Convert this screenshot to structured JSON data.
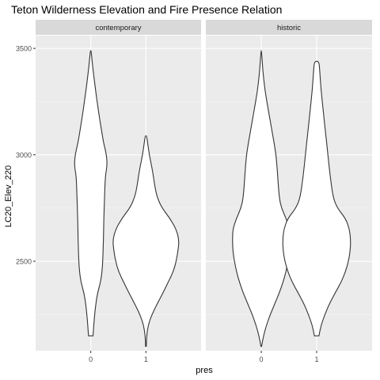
{
  "chart_data": {
    "type": "violin",
    "title": "Teton Wilderness Elevation and Fire Presence Relation",
    "xlabel": "pres",
    "ylabel": "LC20_Elev_220",
    "categories": [
      "0",
      "1"
    ],
    "yticks": [
      2500,
      3000,
      3500
    ],
    "ylim": [
      2080,
      3560
    ],
    "grid": true,
    "panel_background": "#ebebeb",
    "strip_background": "#d9d9d9",
    "violin_fill": "#ffffff",
    "violin_stroke": "#333333",
    "facets": [
      {
        "label": "contemporary",
        "violins": [
          {
            "category": "0",
            "profile": [
              [
                2150,
                0.034
              ],
              [
                2200,
                0.045
              ],
              [
                2250,
                0.059
              ],
              [
                2300,
                0.076
              ],
              [
                2350,
                0.101
              ],
              [
                2400,
                0.146
              ],
              [
                2450,
                0.169
              ],
              [
                2500,
                0.18
              ],
              [
                2600,
                0.191
              ],
              [
                2700,
                0.196
              ],
              [
                2800,
                0.207
              ],
              [
                2900,
                0.218
              ],
              [
                2950,
                0.247
              ],
              [
                3000,
                0.236
              ],
              [
                3050,
                0.197
              ],
              [
                3100,
                0.169
              ],
              [
                3200,
                0.118
              ],
              [
                3300,
                0.073
              ],
              [
                3400,
                0.034
              ],
              [
                3450,
                0.017
              ],
              [
                3490,
                0.005
              ]
            ]
          },
          {
            "category": "1",
            "profile": [
              [
                2100,
                0.005
              ],
              [
                2150,
                0.011
              ],
              [
                2200,
                0.034
              ],
              [
                2250,
                0.09
              ],
              [
                2300,
                0.169
              ],
              [
                2350,
                0.253
              ],
              [
                2400,
                0.331
              ],
              [
                2450,
                0.41
              ],
              [
                2500,
                0.455
              ],
              [
                2550,
                0.483
              ],
              [
                2600,
                0.499
              ],
              [
                2650,
                0.455
              ],
              [
                2700,
                0.365
              ],
              [
                2750,
                0.242
              ],
              [
                2800,
                0.169
              ],
              [
                2850,
                0.135
              ],
              [
                2900,
                0.112
              ],
              [
                2950,
                0.084
              ],
              [
                3000,
                0.051
              ],
              [
                3050,
                0.028
              ],
              [
                3090,
                0.011
              ]
            ]
          }
        ]
      },
      {
        "label": "historic",
        "violins": [
          {
            "category": "0",
            "profile": [
              [
                2100,
                0.005
              ],
              [
                2150,
                0.034
              ],
              [
                2200,
                0.079
              ],
              [
                2250,
                0.135
              ],
              [
                2300,
                0.202
              ],
              [
                2350,
                0.27
              ],
              [
                2400,
                0.326
              ],
              [
                2450,
                0.371
              ],
              [
                2500,
                0.404
              ],
              [
                2550,
                0.427
              ],
              [
                2600,
                0.432
              ],
              [
                2650,
                0.427
              ],
              [
                2700,
                0.376
              ],
              [
                2750,
                0.303
              ],
              [
                2800,
                0.27
              ],
              [
                2900,
                0.247
              ],
              [
                3000,
                0.225
              ],
              [
                3100,
                0.169
              ],
              [
                3200,
                0.112
              ],
              [
                3300,
                0.056
              ],
              [
                3400,
                0.022
              ],
              [
                3490,
                0.005
              ]
            ]
          },
          {
            "category": "1",
            "profile": [
              [
                2150,
                0.034
              ],
              [
                2200,
                0.067
              ],
              [
                2250,
                0.124
              ],
              [
                2300,
                0.191
              ],
              [
                2350,
                0.275
              ],
              [
                2400,
                0.365
              ],
              [
                2450,
                0.432
              ],
              [
                2500,
                0.478
              ],
              [
                2550,
                0.505
              ],
              [
                2600,
                0.511
              ],
              [
                2650,
                0.494
              ],
              [
                2700,
                0.438
              ],
              [
                2750,
                0.309
              ],
              [
                2800,
                0.247
              ],
              [
                2900,
                0.202
              ],
              [
                3000,
                0.169
              ],
              [
                3100,
                0.135
              ],
              [
                3200,
                0.101
              ],
              [
                3300,
                0.067
              ],
              [
                3400,
                0.045
              ],
              [
                3440,
                0.034
              ]
            ]
          }
        ]
      }
    ]
  }
}
